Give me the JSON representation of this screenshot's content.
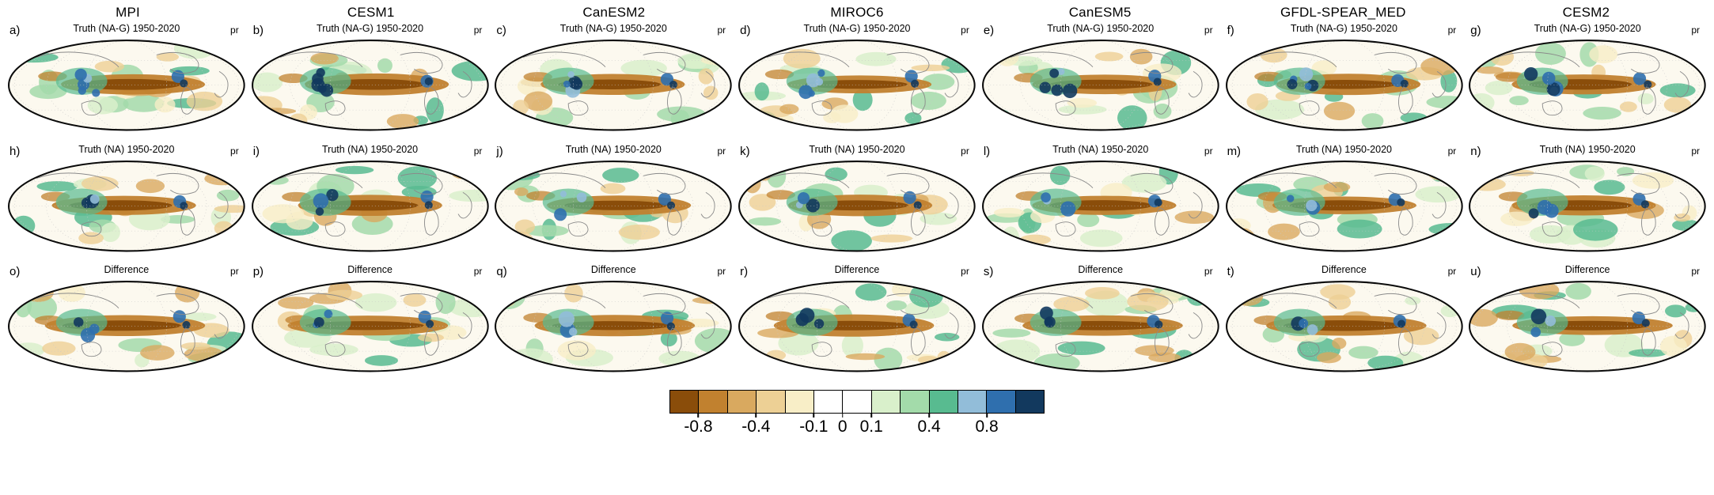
{
  "figure": {
    "columns": [
      "MPI",
      "CESM1",
      "CanESM2",
      "MIROC6",
      "CanESM5",
      "GFDL-SPEAR_MED",
      "CESM2"
    ],
    "rows": [
      {
        "subtitle": "Truth (NA-G) 1950-2020"
      },
      {
        "subtitle": "Truth (NA) 1950-2020"
      },
      {
        "subtitle": "Difference"
      }
    ],
    "panel_letters": [
      "a",
      "b",
      "c",
      "d",
      "e",
      "f",
      "g",
      "h",
      "i",
      "j",
      "k",
      "l",
      "m",
      "n",
      "o",
      "p",
      "q",
      "r",
      "s",
      "t",
      "u"
    ],
    "variable_label": "pr",
    "colorbar": {
      "colors": [
        "#8a4d0a",
        "#c1812f",
        "#d9a95f",
        "#edd095",
        "#f8eec7",
        "#ffffff",
        "#ffffff",
        "#d9f0cb",
        "#a3dbaa",
        "#58bb90",
        "#92bdd9",
        "#2f6fae",
        "#12395e"
      ],
      "tick_labels": [
        "-0.8",
        "-0.4",
        "-0.1",
        "0",
        "0.1",
        "0.4",
        "0.8"
      ],
      "tick_positions": [
        0.0769,
        0.2308,
        0.3846,
        0.4615,
        0.5385,
        0.6923,
        0.8462
      ]
    }
  }
}
